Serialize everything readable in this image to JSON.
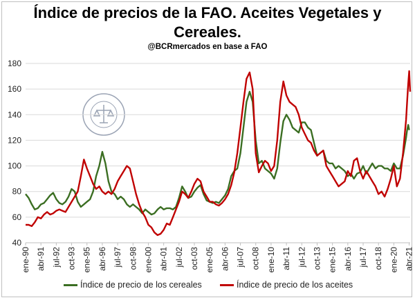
{
  "header": {
    "title_line1": "Índice de precios de la FAO. Aceites Vegetales y",
    "title_line2": "Cereales.",
    "subtitle": "@BCRmercados en base a FAO"
  },
  "watermark": {
    "text": "BOLSA DE COMERCIO DE ROSARIO"
  },
  "colors": {
    "cereales": "#3b6e22",
    "aceites": "#c00000",
    "grid": "#d9d9d9"
  },
  "chart_data": {
    "type": "line",
    "title": "Índice de precios de la FAO. Aceites Vegetales y Cereales.",
    "ylim": [
      40,
      180
    ],
    "yticks": [
      40,
      60,
      80,
      100,
      120,
      140,
      160,
      180
    ],
    "xlim": [
      1990.0,
      2021.33
    ],
    "xtick_labels": [
      "ene-90",
      "abr-91",
      "jul-92",
      "oct-93",
      "ene-95",
      "abr-96",
      "jul-97",
      "oct-98",
      "ene-00",
      "abr-01",
      "jul-02",
      "oct-03",
      "ene-05",
      "abr-06",
      "jul-07",
      "oct-08",
      "ene-10",
      "abr-11",
      "jul-12",
      "oct-13",
      "ene-15",
      "abr-16",
      "jul-17",
      "oct-18",
      "ene-20",
      "abr-21"
    ],
    "xtick_values": [
      1990.0,
      1991.25,
      1992.5,
      1993.75,
      1995.0,
      1996.25,
      1997.5,
      1998.75,
      2000.0,
      2001.25,
      2002.5,
      2003.75,
      2005.0,
      2006.25,
      2007.5,
      2008.75,
      2010.0,
      2011.25,
      2012.5,
      2013.75,
      2015.0,
      2016.25,
      2017.5,
      2018.75,
      2020.0,
      2021.25
    ],
    "grid": true,
    "legend_position": "bottom",
    "series": [
      {
        "name": "Índice de precio de los cereales",
        "points": [
          [
            1990.0,
            78
          ],
          [
            1990.25,
            75
          ],
          [
            1990.5,
            70
          ],
          [
            1990.75,
            66
          ],
          [
            1991.0,
            67
          ],
          [
            1991.25,
            70
          ],
          [
            1991.5,
            71
          ],
          [
            1991.75,
            74
          ],
          [
            1992.0,
            77
          ],
          [
            1992.25,
            79
          ],
          [
            1992.5,
            74
          ],
          [
            1992.75,
            71
          ],
          [
            1993.0,
            70
          ],
          [
            1993.25,
            72
          ],
          [
            1993.5,
            76
          ],
          [
            1993.75,
            82
          ],
          [
            1994.0,
            80
          ],
          [
            1994.25,
            72
          ],
          [
            1994.5,
            68
          ],
          [
            1994.75,
            70
          ],
          [
            1995.0,
            72
          ],
          [
            1995.25,
            74
          ],
          [
            1995.5,
            80
          ],
          [
            1995.75,
            92
          ],
          [
            1996.0,
            100
          ],
          [
            1996.25,
            111
          ],
          [
            1996.5,
            102
          ],
          [
            1996.75,
            88
          ],
          [
            1997.0,
            80
          ],
          [
            1997.25,
            78
          ],
          [
            1997.5,
            74
          ],
          [
            1997.75,
            76
          ],
          [
            1998.0,
            74
          ],
          [
            1998.25,
            70
          ],
          [
            1998.5,
            68
          ],
          [
            1998.75,
            70
          ],
          [
            1999.0,
            68
          ],
          [
            1999.25,
            66
          ],
          [
            1999.5,
            63
          ],
          [
            1999.75,
            66
          ],
          [
            2000.0,
            64
          ],
          [
            2000.25,
            62
          ],
          [
            2000.5,
            63
          ],
          [
            2000.75,
            66
          ],
          [
            2001.0,
            68
          ],
          [
            2001.25,
            66
          ],
          [
            2001.5,
            67
          ],
          [
            2001.75,
            67
          ],
          [
            2002.0,
            66
          ],
          [
            2002.25,
            68
          ],
          [
            2002.5,
            75
          ],
          [
            2002.75,
            84
          ],
          [
            2003.0,
            80
          ],
          [
            2003.25,
            75
          ],
          [
            2003.5,
            76
          ],
          [
            2003.75,
            80
          ],
          [
            2004.0,
            83
          ],
          [
            2004.25,
            85
          ],
          [
            2004.5,
            78
          ],
          [
            2004.75,
            73
          ],
          [
            2005.0,
            72
          ],
          [
            2005.25,
            71
          ],
          [
            2005.5,
            72
          ],
          [
            2005.75,
            71
          ],
          [
            2006.0,
            74
          ],
          [
            2006.25,
            77
          ],
          [
            2006.5,
            82
          ],
          [
            2006.75,
            92
          ],
          [
            2007.0,
            96
          ],
          [
            2007.25,
            98
          ],
          [
            2007.5,
            110
          ],
          [
            2007.75,
            130
          ],
          [
            2008.0,
            150
          ],
          [
            2008.25,
            158
          ],
          [
            2008.5,
            150
          ],
          [
            2008.75,
            120
          ],
          [
            2009.0,
            102
          ],
          [
            2009.25,
            104
          ],
          [
            2009.5,
            98
          ],
          [
            2009.75,
            96
          ],
          [
            2010.0,
            94
          ],
          [
            2010.25,
            90
          ],
          [
            2010.5,
            98
          ],
          [
            2010.75,
            118
          ],
          [
            2011.0,
            135
          ],
          [
            2011.25,
            140
          ],
          [
            2011.5,
            136
          ],
          [
            2011.75,
            130
          ],
          [
            2012.0,
            128
          ],
          [
            2012.25,
            126
          ],
          [
            2012.5,
            134
          ],
          [
            2012.75,
            134
          ],
          [
            2013.0,
            130
          ],
          [
            2013.25,
            128
          ],
          [
            2013.5,
            118
          ],
          [
            2013.75,
            108
          ],
          [
            2014.0,
            110
          ],
          [
            2014.25,
            112
          ],
          [
            2014.5,
            104
          ],
          [
            2014.75,
            102
          ],
          [
            2015.0,
            102
          ],
          [
            2015.25,
            98
          ],
          [
            2015.5,
            100
          ],
          [
            2015.75,
            98
          ],
          [
            2016.0,
            96
          ],
          [
            2016.25,
            92
          ],
          [
            2016.5,
            94
          ],
          [
            2016.75,
            90
          ],
          [
            2017.0,
            94
          ],
          [
            2017.25,
            95
          ],
          [
            2017.5,
            100
          ],
          [
            2017.75,
            94
          ],
          [
            2018.0,
            98
          ],
          [
            2018.25,
            102
          ],
          [
            2018.5,
            98
          ],
          [
            2018.75,
            100
          ],
          [
            2019.0,
            100
          ],
          [
            2019.25,
            98
          ],
          [
            2019.5,
            98
          ],
          [
            2019.75,
            96
          ],
          [
            2020.0,
            102
          ],
          [
            2020.25,
            98
          ],
          [
            2020.5,
            98
          ],
          [
            2020.75,
            108
          ],
          [
            2021.0,
            122
          ],
          [
            2021.08,
            128
          ],
          [
            2021.17,
            132
          ],
          [
            2021.25,
            128
          ]
        ]
      },
      {
        "name": "Índice de precio de los aceites",
        "points": [
          [
            1990.0,
            54
          ],
          [
            1990.25,
            54
          ],
          [
            1990.5,
            53
          ],
          [
            1990.75,
            56
          ],
          [
            1991.0,
            60
          ],
          [
            1991.25,
            59
          ],
          [
            1991.5,
            62
          ],
          [
            1991.75,
            64
          ],
          [
            1992.0,
            62
          ],
          [
            1992.25,
            63
          ],
          [
            1992.5,
            65
          ],
          [
            1992.75,
            66
          ],
          [
            1993.0,
            65
          ],
          [
            1993.25,
            64
          ],
          [
            1993.5,
            68
          ],
          [
            1993.75,
            72
          ],
          [
            1994.0,
            76
          ],
          [
            1994.25,
            80
          ],
          [
            1994.5,
            92
          ],
          [
            1994.75,
            105
          ],
          [
            1995.0,
            98
          ],
          [
            1995.25,
            92
          ],
          [
            1995.5,
            86
          ],
          [
            1995.75,
            82
          ],
          [
            1996.0,
            84
          ],
          [
            1996.25,
            80
          ],
          [
            1996.5,
            78
          ],
          [
            1996.75,
            80
          ],
          [
            1997.0,
            78
          ],
          [
            1997.25,
            82
          ],
          [
            1997.5,
            88
          ],
          [
            1997.75,
            92
          ],
          [
            1998.0,
            96
          ],
          [
            1998.25,
            100
          ],
          [
            1998.5,
            98
          ],
          [
            1998.75,
            88
          ],
          [
            1999.0,
            78
          ],
          [
            1999.25,
            70
          ],
          [
            1999.5,
            64
          ],
          [
            1999.75,
            60
          ],
          [
            2000.0,
            54
          ],
          [
            2000.25,
            52
          ],
          [
            2000.5,
            48
          ],
          [
            2000.75,
            46
          ],
          [
            2001.0,
            47
          ],
          [
            2001.25,
            50
          ],
          [
            2001.5,
            55
          ],
          [
            2001.75,
            54
          ],
          [
            2002.0,
            60
          ],
          [
            2002.25,
            66
          ],
          [
            2002.5,
            72
          ],
          [
            2002.75,
            80
          ],
          [
            2003.0,
            78
          ],
          [
            2003.25,
            75
          ],
          [
            2003.5,
            80
          ],
          [
            2003.75,
            86
          ],
          [
            2004.0,
            90
          ],
          [
            2004.25,
            88
          ],
          [
            2004.5,
            80
          ],
          [
            2004.75,
            76
          ],
          [
            2005.0,
            72
          ],
          [
            2005.25,
            72
          ],
          [
            2005.5,
            70
          ],
          [
            2005.75,
            69
          ],
          [
            2006.0,
            71
          ],
          [
            2006.25,
            74
          ],
          [
            2006.5,
            78
          ],
          [
            2006.75,
            85
          ],
          [
            2007.0,
            95
          ],
          [
            2007.25,
            110
          ],
          [
            2007.5,
            130
          ],
          [
            2007.75,
            150
          ],
          [
            2008.0,
            168
          ],
          [
            2008.25,
            173
          ],
          [
            2008.5,
            160
          ],
          [
            2008.75,
            110
          ],
          [
            2009.0,
            95
          ],
          [
            2009.25,
            100
          ],
          [
            2009.5,
            104
          ],
          [
            2009.75,
            102
          ],
          [
            2010.0,
            96
          ],
          [
            2010.25,
            100
          ],
          [
            2010.5,
            120
          ],
          [
            2010.75,
            150
          ],
          [
            2011.0,
            166
          ],
          [
            2011.25,
            155
          ],
          [
            2011.5,
            150
          ],
          [
            2011.75,
            148
          ],
          [
            2012.0,
            146
          ],
          [
            2012.25,
            140
          ],
          [
            2012.5,
            130
          ],
          [
            2012.75,
            125
          ],
          [
            2013.0,
            120
          ],
          [
            2013.25,
            118
          ],
          [
            2013.5,
            112
          ],
          [
            2013.75,
            108
          ],
          [
            2014.0,
            110
          ],
          [
            2014.25,
            112
          ],
          [
            2014.5,
            100
          ],
          [
            2014.75,
            96
          ],
          [
            2015.0,
            92
          ],
          [
            2015.25,
            88
          ],
          [
            2015.5,
            84
          ],
          [
            2015.75,
            86
          ],
          [
            2016.0,
            88
          ],
          [
            2016.25,
            96
          ],
          [
            2016.5,
            92
          ],
          [
            2016.75,
            104
          ],
          [
            2017.0,
            106
          ],
          [
            2017.25,
            96
          ],
          [
            2017.5,
            90
          ],
          [
            2017.75,
            96
          ],
          [
            2018.0,
            92
          ],
          [
            2018.25,
            88
          ],
          [
            2018.5,
            84
          ],
          [
            2018.75,
            78
          ],
          [
            2019.0,
            80
          ],
          [
            2019.25,
            76
          ],
          [
            2019.5,
            82
          ],
          [
            2019.75,
            90
          ],
          [
            2020.0,
            100
          ],
          [
            2020.25,
            84
          ],
          [
            2020.5,
            90
          ],
          [
            2020.75,
            110
          ],
          [
            2021.0,
            136
          ],
          [
            2021.08,
            150
          ],
          [
            2021.17,
            164
          ],
          [
            2021.25,
            174
          ],
          [
            2021.33,
            158
          ]
        ]
      }
    ]
  },
  "legend": [
    {
      "label": "Índice de precio de los cereales"
    },
    {
      "label": "Índice de precio de los aceites"
    }
  ]
}
